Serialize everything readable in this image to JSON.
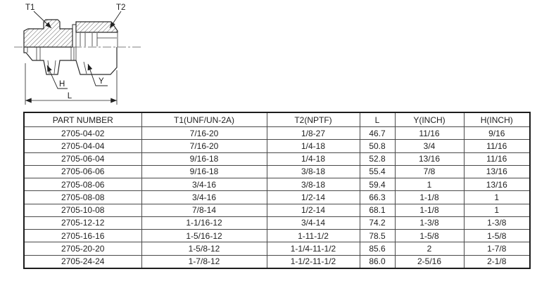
{
  "diagram": {
    "labels": {
      "t1": "T1",
      "t2": "T2",
      "h": "H",
      "y": "Y",
      "l": "L"
    }
  },
  "table": {
    "columns": [
      "PART NUMBER",
      "T1(UNF/UN-2A)",
      "T2(NPTF)",
      "L",
      "Y(INCH)",
      "H(INCH)"
    ],
    "rows": [
      [
        "2705-04-02",
        "7/16-20",
        "1/8-27",
        "46.7",
        "11/16",
        "9/16"
      ],
      [
        "2705-04-04",
        "7/16-20",
        "1/4-18",
        "50.8",
        "3/4",
        "11/16"
      ],
      [
        "2705-06-04",
        "9/16-18",
        "1/4-18",
        "52.8",
        "13/16",
        "11/16"
      ],
      [
        "2705-06-06",
        "9/16-18",
        "3/8-18",
        "55.4",
        "7/8",
        "13/16"
      ],
      [
        "2705-08-06",
        "3/4-16",
        "3/8-18",
        "59.4",
        "1",
        "13/16"
      ],
      [
        "2705-08-08",
        "3/4-16",
        "1/2-14",
        "66.3",
        "1-1/8",
        "1"
      ],
      [
        "2705-10-08",
        "7/8-14",
        "1/2-14",
        "68.1",
        "1-1/8",
        "1"
      ],
      [
        "2705-12-12",
        "1-1/16-12",
        "3/4-14",
        "74.2",
        "1-3/8",
        "1-3/8"
      ],
      [
        "2705-16-16",
        "1-5/16-12",
        "1-11-1/2",
        "78.5",
        "1-5/8",
        "1-5/8"
      ],
      [
        "2705-20-20",
        "1-5/8-12",
        "1-1/4-11-1/2",
        "85.6",
        "2",
        "1-7/8"
      ],
      [
        "2705-24-24",
        "1-7/8-12",
        "1-1/2-11-1/2",
        "86.0",
        "2-5/16",
        "2-1/8"
      ]
    ]
  },
  "colors": {
    "line": "#2a2a2a",
    "table_border": "#4a4a4a",
    "text": "#1f1f1f"
  }
}
